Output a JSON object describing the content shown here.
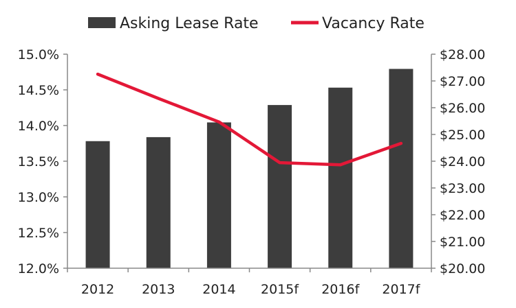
{
  "chart_data": {
    "type": "bar",
    "categories": [
      "2012",
      "2013",
      "2014",
      "2015f",
      "2016f",
      "2017f"
    ],
    "series": [
      {
        "name": "Asking Lease Rate",
        "type": "bar",
        "axis": "right",
        "color": "#3d3d3d",
        "values": [
          24.75,
          24.9,
          25.45,
          26.1,
          26.75,
          27.45
        ]
      },
      {
        "name": "Vacancy Rate",
        "type": "line",
        "axis": "left",
        "color": "#e31837",
        "values": [
          14.72,
          14.38,
          14.05,
          13.48,
          13.45,
          13.75
        ]
      }
    ],
    "y_left": {
      "range": [
        12.0,
        15.0
      ],
      "ticks": [
        "12.0%",
        "12.5%",
        "13.0%",
        "13.5%",
        "14.0%",
        "14.5%",
        "15.0%"
      ]
    },
    "y_right": {
      "range": [
        20.0,
        28.0
      ],
      "ticks": [
        "$20.00",
        "$21.00",
        "$22.00",
        "$23.00",
        "$24.00",
        "$25.00",
        "$26.00",
        "$27.00",
        "$28.00"
      ]
    },
    "legend": {
      "position": "top",
      "items": [
        "Asking Lease Rate",
        "Vacancy Rate"
      ]
    },
    "grid": false
  }
}
